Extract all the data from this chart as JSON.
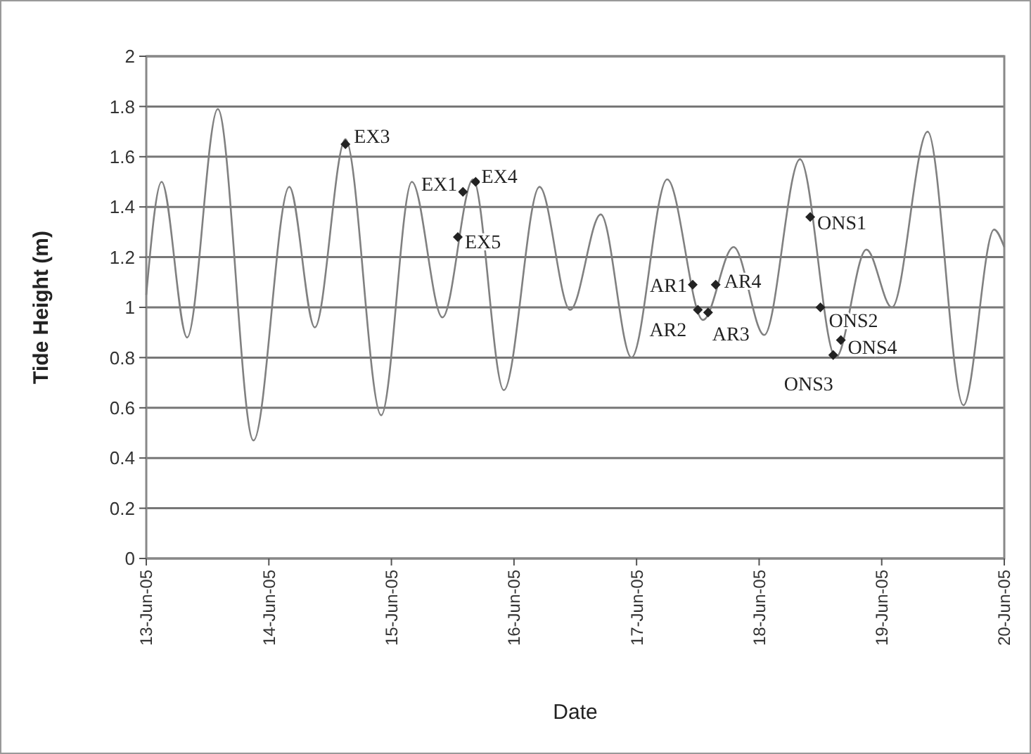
{
  "chart_data": {
    "type": "line",
    "xlabel": "Date",
    "ylabel": "Tide Height (m)",
    "xlim": [
      "--06-13",
      "--06-20"
    ],
    "xticks": [
      {
        "value": "--06-13",
        "label": "13-Jun-05"
      },
      {
        "value": "--06-14",
        "label": "14-Jun-05"
      },
      {
        "value": "--06-15",
        "label": "15-Jun-05"
      },
      {
        "value": "--06-16",
        "label": "16-Jun-05"
      },
      {
        "value": "--06-17",
        "label": "17-Jun-05"
      },
      {
        "value": "--06-18",
        "label": "18-Jun-05"
      },
      {
        "value": "--06-19",
        "label": "19-Jun-05"
      },
      {
        "value": "--06-20",
        "label": "20-Jun-05"
      }
    ],
    "ylim": [
      0,
      2
    ],
    "yticks": [
      0,
      0.2,
      0.4,
      0.6,
      0.8,
      1,
      1.2,
      1.4,
      1.6,
      1.8,
      2
    ],
    "grid": "y",
    "series": [
      {
        "color": "#808080",
        "marker": "none",
        "x": [
          "--06-13T00:00",
          "--06-13T03:00",
          "--06-13T08:00",
          "--06-13T14:00",
          "--06-13T21:00",
          "--06-14T04:00",
          "--06-14T09:00",
          "--06-14T15:00",
          "--06-14T22:00",
          "--06-15T04:00",
          "--06-15T10:00",
          "--06-15T16:00",
          "--06-15T22:00",
          "--06-16T05:00",
          "--06-16T11:00",
          "--06-16T17:00",
          "--06-16T23:00",
          "--06-17T06:00",
          "--06-17T13:00",
          "--06-17T19:00",
          "--06-18T01:00",
          "--06-18T08:00",
          "--06-18T15:00",
          "--06-18T21:00",
          "--06-19T02:00",
          "--06-19T09:00",
          "--06-19T16:00",
          "--06-19T22:00",
          "--06-20T00:00"
        ],
        "values": [
          1.05,
          1.5,
          0.88,
          1.79,
          0.47,
          1.48,
          0.92,
          1.67,
          0.57,
          1.5,
          0.96,
          1.51,
          0.67,
          1.48,
          0.99,
          1.37,
          0.8,
          1.51,
          0.95,
          1.24,
          0.89,
          1.59,
          0.8,
          1.23,
          1.0,
          1.7,
          0.61,
          1.31,
          1.24
        ]
      },
      {
        "type": "scatter",
        "color": "#222222",
        "marker": "diamond",
        "x": [
          "--06-14T15:00",
          "--06-15T14:00",
          "--06-15T16:30",
          "--06-15T13:00",
          "--06-17T11:00",
          "--06-17T12:00",
          "--06-17T14:00",
          "--06-17T15:30",
          "--06-18T10:00",
          "--06-18T12:00",
          "--06-18T14:30",
          "--06-18T16:00"
        ],
        "values": [
          1.65,
          1.46,
          1.5,
          1.28,
          1.09,
          0.99,
          0.98,
          1.09,
          1.36,
          1.0,
          0.81,
          0.87
        ]
      }
    ],
    "annotations": [
      {
        "text": "EX3",
        "x": "--06-14T15:00",
        "y": 1.65
      },
      {
        "text": "EX1",
        "x": "--06-15T14:00",
        "y": 1.46
      },
      {
        "text": "EX4",
        "x": "--06-15T16:30",
        "y": 1.5
      },
      {
        "text": "EX5",
        "x": "--06-15T13:00",
        "y": 1.28
      },
      {
        "text": "AR1",
        "x": "--06-17T11:00",
        "y": 1.09
      },
      {
        "text": "AR2",
        "x": "--06-17T12:00",
        "y": 0.99
      },
      {
        "text": "AR3",
        "x": "--06-17T14:00",
        "y": 0.98
      },
      {
        "text": "AR4",
        "x": "--06-17T15:30",
        "y": 1.09
      },
      {
        "text": "ONS1",
        "x": "--06-18T10:00",
        "y": 1.36
      },
      {
        "text": "ONS2",
        "x": "--06-18T12:00",
        "y": 1.0
      },
      {
        "text": "ONS3",
        "x": "--06-18T14:30",
        "y": 0.81
      },
      {
        "text": "ONS4",
        "x": "--06-18T16:00",
        "y": 0.87
      }
    ]
  }
}
